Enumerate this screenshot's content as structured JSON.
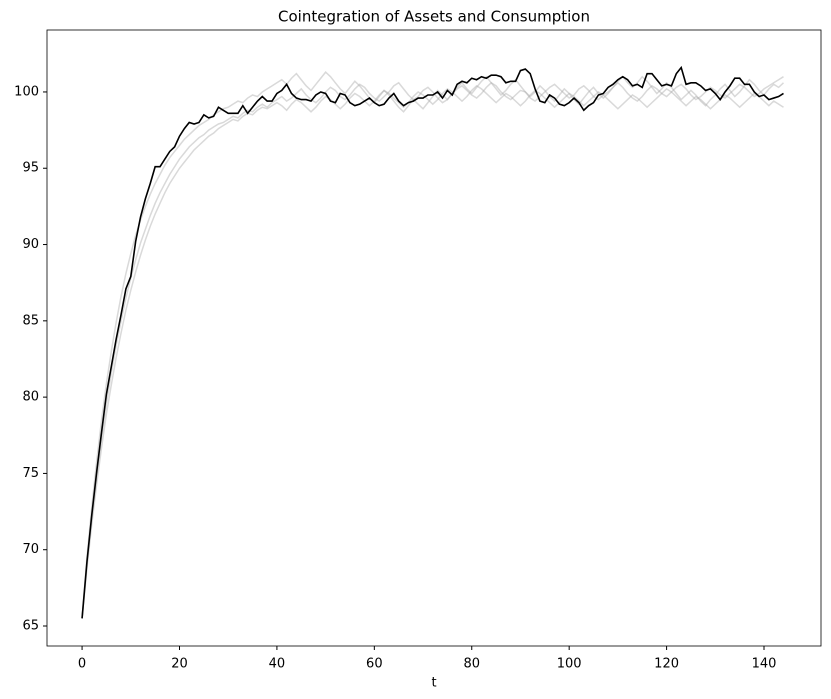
{
  "chart_data": {
    "type": "line",
    "title": "Cointegration of Assets and Consumption",
    "x_label": "t",
    "x": [
      0,
      1,
      2,
      3,
      4,
      5,
      6,
      7,
      8,
      9,
      10,
      11,
      12,
      13,
      14,
      15,
      16,
      17,
      18,
      19,
      20,
      21,
      22,
      23,
      24,
      25,
      26,
      27,
      28,
      29,
      30,
      31,
      32,
      33,
      34,
      35,
      36,
      37,
      38,
      39,
      40,
      41,
      42,
      43,
      44,
      45,
      46,
      47,
      48,
      49,
      50,
      51,
      52,
      53,
      54,
      55,
      56,
      57,
      58,
      59,
      60,
      61,
      62,
      63,
      64,
      65,
      66,
      67,
      68,
      69,
      70,
      71,
      72,
      73,
      74,
      75,
      76,
      77,
      78,
      79,
      80,
      81,
      82,
      83,
      84,
      85,
      86,
      87,
      88,
      89,
      90,
      91,
      92,
      93,
      94,
      95,
      96,
      97,
      98,
      99,
      100,
      101,
      102,
      103,
      104,
      105,
      106,
      107,
      108,
      109,
      110,
      111,
      112,
      113,
      114,
      115,
      116,
      117,
      118,
      119,
      120,
      121,
      122,
      123,
      124,
      125,
      126,
      127,
      128,
      129,
      130,
      131,
      132,
      133,
      134,
      135,
      136,
      137,
      138,
      139,
      140,
      141,
      142,
      143,
      144
    ],
    "xlim": [
      -7.2,
      151.7
    ],
    "ylim": [
      63.69,
      104.06
    ],
    "xticks": [
      0,
      20,
      40,
      60,
      80,
      100,
      120,
      140
    ],
    "yticks": [
      65,
      70,
      75,
      80,
      85,
      90,
      95,
      100
    ],
    "grid": false,
    "series": [
      {
        "color": "#aaaaaa",
        "values": [
          65.5,
          69.0,
          72.0,
          74.8,
          77.3,
          79.6,
          81.6,
          83.4,
          85.0,
          86.5,
          87.8,
          89.0,
          90.1,
          91.0,
          91.9,
          92.7,
          93.4,
          94.0,
          94.6,
          95.1,
          95.6,
          96.0,
          96.4,
          96.7,
          97.0,
          97.2,
          97.5,
          97.7,
          97.9,
          98.0,
          98.2,
          98.4,
          98.3,
          98.6,
          98.8,
          98.7,
          99.0,
          99.2,
          99.0,
          99.3,
          99.5,
          99.7,
          99.4,
          99.6,
          99.9,
          100.2,
          99.8,
          99.5,
          99.3,
          99.6,
          100.0,
          100.3,
          100.1,
          99.7,
          99.5,
          99.8,
          100.2,
          100.5,
          100.3,
          99.9,
          99.6,
          99.4,
          99.7,
          100.0,
          100.4,
          100.6,
          100.2,
          99.8,
          99.5,
          99.7,
          100.1,
          100.3,
          100.0,
          99.6,
          99.3,
          99.5,
          99.9,
          100.2,
          100.4,
          100.1,
          99.8,
          99.6,
          99.9,
          100.3,
          100.6,
          100.4,
          100.0,
          99.7,
          99.5,
          99.8,
          100.1,
          100.0,
          99.6,
          99.4,
          99.7,
          100.0,
          100.3,
          100.5,
          100.2,
          99.9,
          99.6,
          99.8,
          100.2,
          100.4,
          100.1,
          99.7,
          99.5,
          99.8,
          100.0,
          100.3,
          100.6,
          100.3,
          99.9,
          99.6,
          99.4,
          99.7,
          100.1,
          100.4,
          100.2,
          99.9,
          99.7,
          100.0,
          100.3,
          100.5,
          100.2,
          99.8,
          99.5,
          99.7,
          100.0,
          100.3,
          100.1,
          99.8,
          99.6,
          99.9,
          100.2,
          100.5,
          100.3,
          100.0,
          99.7,
          99.9,
          100.2,
          100.4,
          100.6,
          100.8,
          101.0
        ]
      },
      {
        "color": "#aaaaaa",
        "values": [
          65.5,
          69.5,
          72.8,
          75.8,
          78.5,
          80.9,
          83.0,
          84.9,
          86.6,
          88.1,
          89.4,
          90.6,
          91.6,
          92.5,
          93.3,
          94.0,
          94.6,
          95.2,
          95.7,
          96.1,
          96.5,
          96.9,
          97.2,
          97.5,
          97.8,
          98.0,
          98.2,
          98.5,
          98.7,
          98.9,
          99.0,
          99.2,
          99.4,
          99.3,
          99.6,
          99.8,
          99.7,
          100.0,
          100.2,
          100.4,
          100.6,
          100.8,
          100.5,
          100.9,
          101.2,
          100.8,
          100.4,
          100.1,
          100.5,
          100.9,
          101.3,
          101.0,
          100.6,
          100.2,
          99.9,
          100.3,
          100.7,
          100.4,
          100.0,
          99.6,
          99.3,
          99.7,
          100.1,
          99.8,
          99.4,
          99.0,
          98.7,
          99.1,
          99.5,
          99.2,
          98.9,
          99.3,
          99.7,
          100.1,
          99.8,
          99.5,
          99.9,
          100.3,
          100.6,
          100.2,
          99.9,
          100.3,
          100.7,
          101.0,
          100.6,
          100.2,
          99.8,
          100.1,
          100.5,
          100.8,
          100.4,
          100.0,
          99.7,
          100.0,
          100.4,
          100.1,
          99.7,
          99.4,
          99.8,
          100.2,
          99.9,
          99.5,
          99.2,
          99.6,
          100.0,
          100.3,
          99.9,
          99.6,
          99.9,
          100.3,
          100.7,
          101.0,
          100.6,
          100.3,
          100.6,
          101.0,
          100.7,
          100.3,
          99.9,
          100.2,
          100.6,
          100.3,
          99.9,
          99.5,
          99.8,
          100.1,
          99.8,
          99.4,
          99.1,
          99.5,
          99.8,
          100.2,
          100.5,
          100.1,
          99.7,
          100.0,
          100.4,
          100.8,
          100.5,
          100.1,
          99.8,
          100.2,
          100.5,
          100.3,
          100.6
        ]
      },
      {
        "color": "#aaaaaa",
        "values": [
          65.5,
          68.8,
          71.7,
          74.3,
          76.7,
          78.9,
          80.8,
          82.6,
          84.2,
          85.7,
          87.0,
          88.2,
          89.3,
          90.3,
          91.2,
          92.0,
          92.7,
          93.4,
          94.0,
          94.5,
          95.0,
          95.4,
          95.8,
          96.2,
          96.5,
          96.8,
          97.1,
          97.3,
          97.6,
          97.8,
          98.0,
          98.2,
          98.1,
          98.4,
          98.6,
          98.5,
          98.8,
          99.0,
          98.9,
          99.1,
          99.3,
          99.1,
          98.8,
          99.2,
          99.5,
          99.3,
          99.0,
          98.7,
          99.0,
          99.4,
          99.7,
          99.5,
          99.2,
          98.9,
          99.2,
          99.6,
          99.9,
          99.7,
          99.4,
          99.1,
          99.4,
          99.8,
          100.1,
          99.9,
          99.6,
          99.3,
          99.0,
          99.3,
          99.7,
          100.0,
          99.8,
          99.5,
          99.2,
          99.5,
          99.9,
          100.2,
          100.0,
          99.7,
          99.4,
          99.7,
          100.1,
          100.4,
          100.2,
          99.9,
          99.6,
          99.3,
          99.6,
          99.9,
          99.7,
          99.4,
          99.1,
          99.4,
          99.8,
          100.1,
          99.9,
          99.6,
          99.3,
          99.0,
          99.3,
          99.6,
          99.9,
          99.7,
          99.4,
          99.1,
          99.4,
          99.7,
          100.0,
          99.8,
          99.5,
          99.2,
          98.9,
          99.2,
          99.5,
          99.8,
          99.6,
          99.3,
          99.0,
          99.3,
          99.6,
          99.9,
          100.2,
          100.0,
          99.7,
          99.4,
          99.1,
          99.4,
          99.7,
          99.5,
          99.2,
          98.9,
          99.2,
          99.5,
          99.8,
          99.6,
          99.3,
          99.0,
          99.3,
          99.6,
          99.9,
          99.7,
          99.4,
          99.1,
          99.4,
          99.2,
          99.0
        ]
      },
      {
        "color": "#000000",
        "values": [
          65.5,
          69.2,
          72.3,
          75.1,
          77.7,
          80.2,
          82.0,
          83.8,
          85.4,
          87.1,
          87.9,
          90.2,
          91.8,
          93.0,
          94.0,
          95.1,
          95.1,
          95.6,
          96.1,
          96.4,
          97.1,
          97.6,
          98.0,
          97.9,
          98.0,
          98.5,
          98.3,
          98.4,
          99.0,
          98.8,
          98.6,
          98.6,
          98.6,
          99.1,
          98.6,
          99.0,
          99.4,
          99.7,
          99.4,
          99.4,
          99.9,
          100.1,
          100.5,
          99.9,
          99.6,
          99.5,
          99.5,
          99.4,
          99.8,
          100.0,
          99.9,
          99.4,
          99.3,
          99.9,
          99.8,
          99.3,
          99.1,
          99.2,
          99.4,
          99.6,
          99.3,
          99.1,
          99.2,
          99.6,
          99.9,
          99.4,
          99.1,
          99.3,
          99.4,
          99.6,
          99.6,
          99.8,
          99.8,
          100.0,
          99.6,
          100.1,
          99.8,
          100.5,
          100.7,
          100.6,
          100.9,
          100.8,
          101.0,
          100.9,
          101.1,
          101.1,
          101.0,
          100.6,
          100.7,
          100.7,
          101.4,
          101.5,
          101.2,
          100.2,
          99.4,
          99.3,
          99.8,
          99.6,
          99.2,
          99.1,
          99.3,
          99.6,
          99.3,
          98.8,
          99.1,
          99.3,
          99.8,
          99.9,
          100.3,
          100.5,
          100.8,
          101.0,
          100.8,
          100.4,
          100.5,
          100.3,
          101.2,
          101.2,
          100.8,
          100.4,
          100.5,
          100.4,
          101.2,
          101.6,
          100.5,
          100.6,
          100.6,
          100.4,
          100.1,
          100.2,
          99.9,
          99.5,
          100.0,
          100.4,
          100.9,
          100.9,
          100.5,
          100.5,
          100.0,
          99.7,
          99.8,
          99.5,
          99.6,
          99.7,
          99.9
        ]
      }
    ]
  }
}
